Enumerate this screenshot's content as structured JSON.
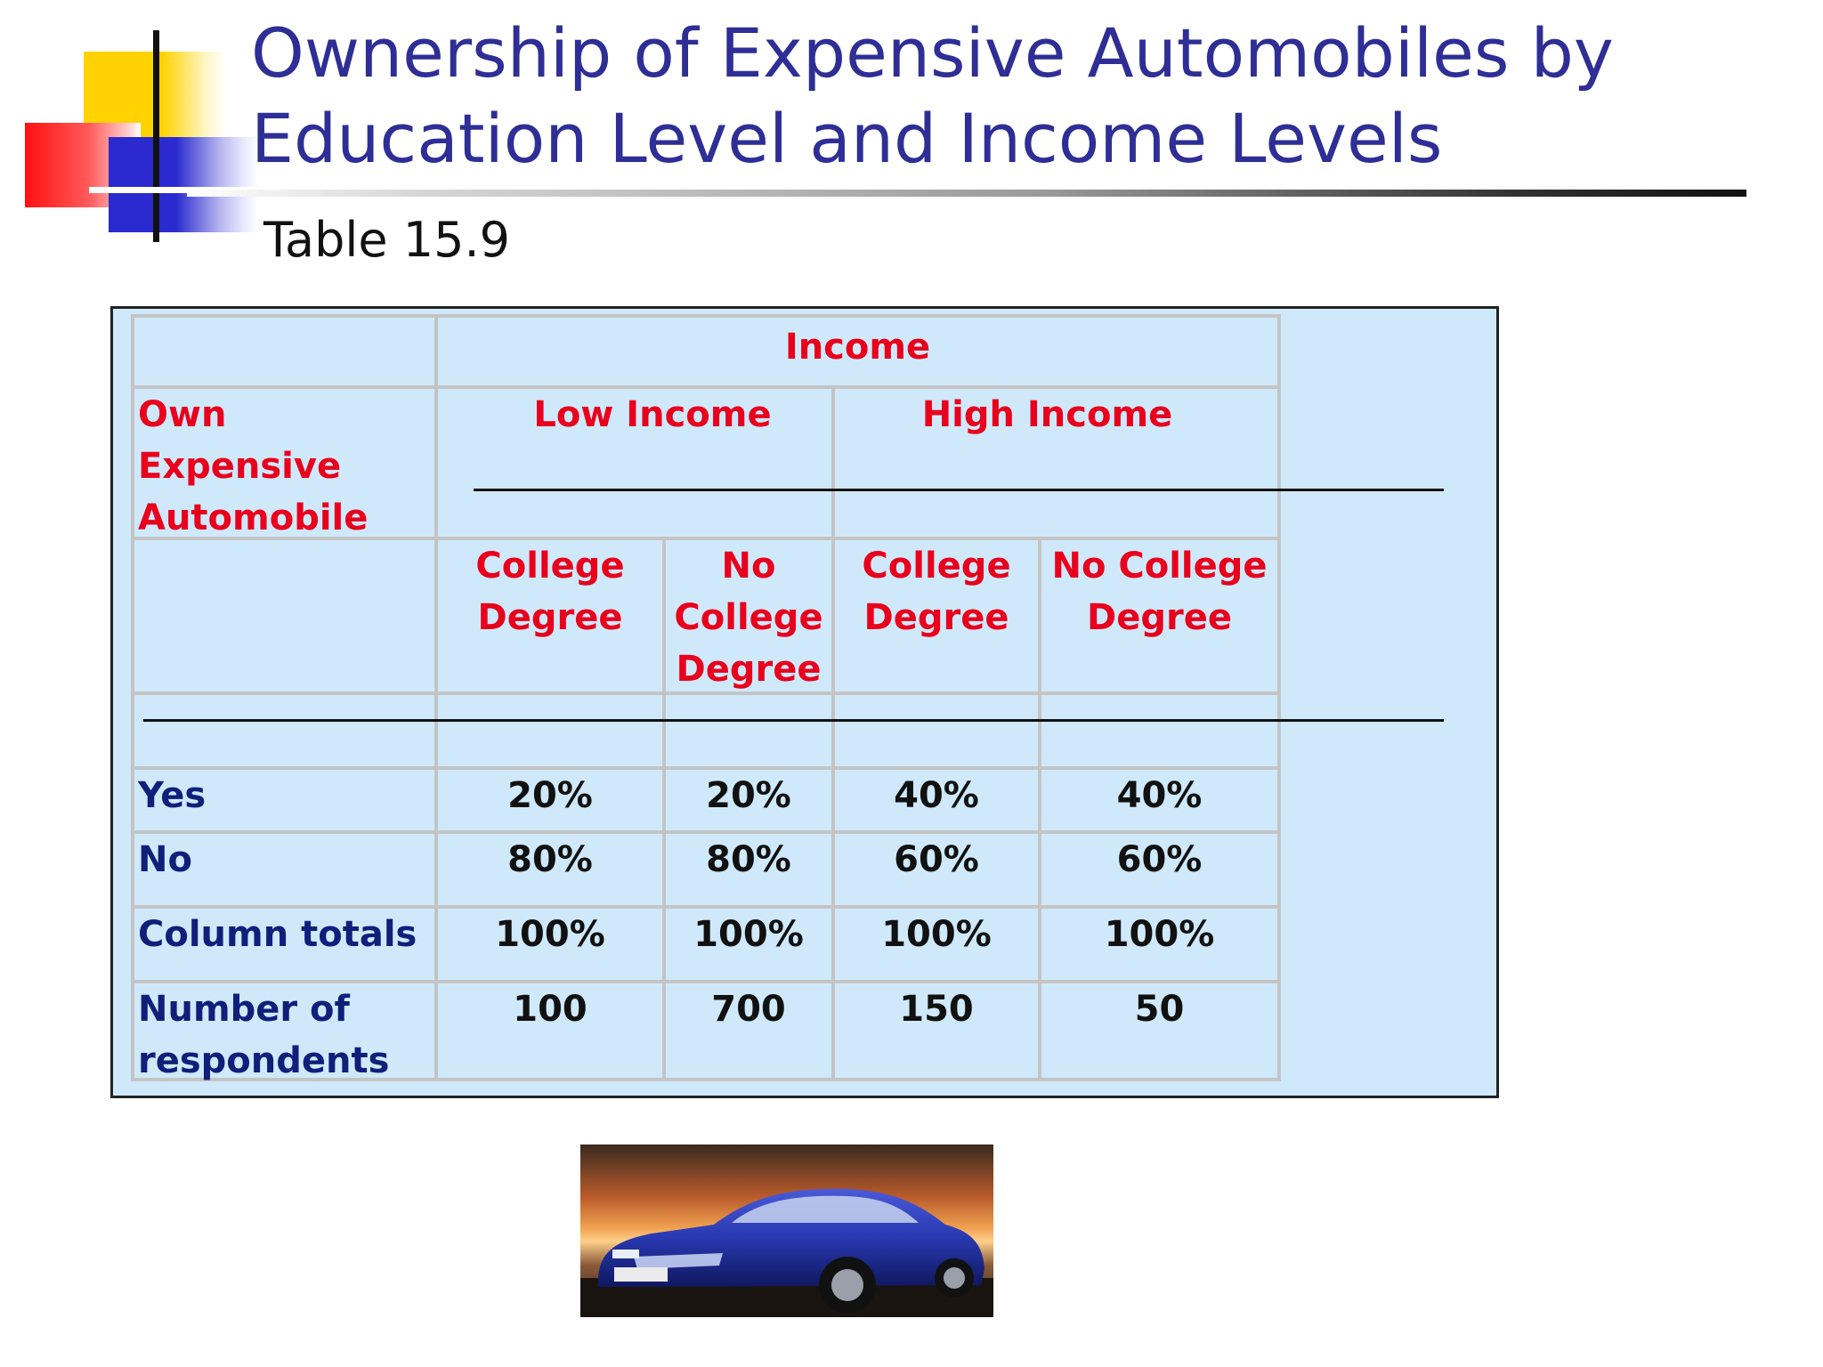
{
  "title": "Ownership of Expensive Automobiles by Education Level and Income Levels",
  "subtitle": "Table 15.9",
  "table": {
    "income_header": "Income",
    "row_header": "Own Expensive Automobile",
    "low_income": "Low Income",
    "high_income": "High Income",
    "columns": [
      "College Degree",
      "No College Degree",
      "College Degree",
      "No College Degree"
    ],
    "rows": [
      {
        "label": "Yes",
        "values": [
          "20%",
          "20%",
          "40%",
          "40%"
        ]
      },
      {
        "label": "No",
        "values": [
          "80%",
          "80%",
          "60%",
          "60%"
        ]
      },
      {
        "label": "Column totals",
        "values": [
          "100%",
          "100%",
          "100%",
          "100%"
        ]
      },
      {
        "label": "Number of respondents",
        "values": [
          "100",
          "700",
          "150",
          "50"
        ]
      }
    ]
  },
  "image": {
    "icon": "car-photo"
  }
}
